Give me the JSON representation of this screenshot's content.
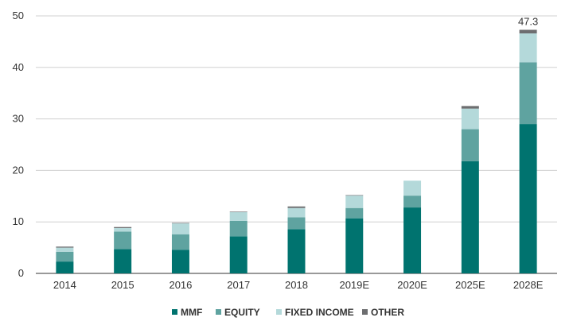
{
  "chart_data": {
    "type": "bar",
    "stacked": true,
    "categories": [
      "2014",
      "2015",
      "2016",
      "2017",
      "2018",
      "2019E",
      "2020E",
      "2025E",
      "2028E"
    ],
    "series": [
      {
        "name": "MMF",
        "color": "#00736f",
        "values": [
          2.3,
          4.7,
          4.6,
          7.2,
          8.6,
          10.7,
          12.8,
          21.8,
          29.0
        ]
      },
      {
        "name": "EQUITY",
        "color": "#5fa3a0",
        "values": [
          1.9,
          3.4,
          3.0,
          3.0,
          2.3,
          2.0,
          2.3,
          6.2,
          12.0
        ]
      },
      {
        "name": "FIXED INCOME",
        "color": "#b4d9da",
        "values": [
          0.8,
          0.7,
          2.1,
          1.7,
          1.8,
          2.4,
          2.9,
          4.0,
          5.6
        ]
      },
      {
        "name": "OTHER",
        "color": "#6d6e70",
        "values": [
          0.2,
          0.2,
          0.1,
          0.1,
          0.3,
          0.1,
          0.0,
          0.5,
          0.7
        ]
      }
    ],
    "ylim": [
      0,
      50
    ],
    "yticks": [
      0,
      10,
      20,
      30,
      40,
      50
    ],
    "grid": true,
    "legend_position": "bottom",
    "annotations": [
      {
        "category": "2028E",
        "text": "47.3"
      }
    ]
  }
}
